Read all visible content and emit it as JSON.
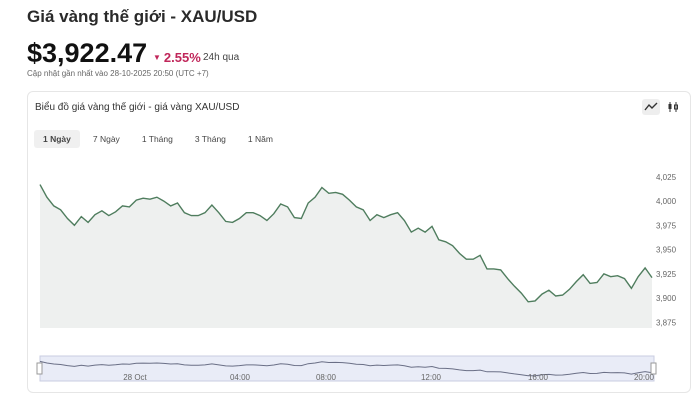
{
  "header": {
    "title": "Giá vàng thế giới - XAU/USD",
    "price": "$3,922.47",
    "change": "2.55%",
    "change_suffix": "24h qua",
    "updated": "Cập nhật gần nhất vào 28-10-2025 20:50 (UTC +7)"
  },
  "card": {
    "title": "Biểu đồ giá vàng thế giới - giá vàng XAU/USD",
    "tabs": [
      "1 Ngày",
      "7 Ngày",
      "1 Tháng",
      "3 Tháng",
      "1 Năm"
    ]
  },
  "chart_data": {
    "type": "area",
    "color": "#4f7d5e",
    "fill": "#eef0ef",
    "values": [
      4018,
      4005,
      3996,
      3992,
      3983,
      3976,
      3985,
      3979,
      3987,
      3991,
      3986,
      3990,
      3996,
      3995,
      4002,
      4004,
      4003,
      4005,
      4001,
      3996,
      3999,
      3989,
      3986,
      3986,
      3989,
      3997,
      3989,
      3980,
      3979,
      3983,
      3989,
      3989,
      3986,
      3981,
      3988,
      3998,
      3995,
      3984,
      3983,
      3999,
      4005,
      4015,
      4009,
      4010,
      4008,
      4002,
      3995,
      3992,
      3981,
      3987,
      3984,
      3987,
      3989,
      3981,
      3969,
      3973,
      3969,
      3975,
      3961,
      3959,
      3955,
      3947,
      3941,
      3941,
      3945,
      3931,
      3931,
      3930,
      3921,
      3913,
      3906,
      3897,
      3898,
      3905,
      3909,
      3903,
      3904,
      3910,
      3918,
      3925,
      3916,
      3917,
      3926,
      3923,
      3924,
      3921,
      3911,
      3923,
      3932,
      3922
    ],
    "ylim": [
      3870,
      4030
    ],
    "yticks": [
      {
        "value": 3875,
        "label": "3,875"
      },
      {
        "value": 3900,
        "label": "3,900"
      },
      {
        "value": 3925,
        "label": "3,925"
      },
      {
        "value": 3950,
        "label": "3,950"
      },
      {
        "value": 3975,
        "label": "3,975"
      },
      {
        "value": 4000,
        "label": "4,000"
      },
      {
        "value": 4025,
        "label": "4,025"
      }
    ],
    "navigator_labels": [
      "28 Oct",
      "04:00",
      "08:00",
      "12:00",
      "16:00",
      "20:00"
    ]
  }
}
